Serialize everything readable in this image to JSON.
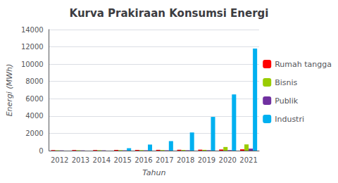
{
  "chart_data": {
    "type": "bar",
    "title": "Kurva Prakiraan Konsumsi Energi",
    "xlabel": "Tahun",
    "ylabel": "Energi (MWh)",
    "categories": [
      "2012",
      "2013",
      "2014",
      "2015",
      "2016",
      "2017",
      "2018",
      "2019",
      "2020",
      "2021"
    ],
    "series": [
      {
        "name": "Rumah tangga",
        "color": "#FF0000",
        "values": [
          60,
          70,
          70,
          80,
          80,
          90,
          100,
          110,
          130,
          150
        ]
      },
      {
        "name": "Bisnis",
        "color": "#99CC00",
        "values": [
          40,
          45,
          50,
          55,
          60,
          65,
          75,
          90,
          420,
          720
        ]
      },
      {
        "name": "Publik",
        "color": "#7030A0",
        "values": [
          30,
          30,
          35,
          35,
          40,
          40,
          45,
          50,
          55,
          230
        ]
      },
      {
        "name": "Industri",
        "color": "#00B0F0",
        "values": [
          0,
          0,
          0,
          280,
          700,
          1100,
          2100,
          3900,
          6500,
          11800
        ]
      }
    ],
    "ylim": [
      0,
      14000
    ],
    "yticks": [
      0,
      2000,
      4000,
      6000,
      8000,
      10000,
      12000,
      14000
    ],
    "grid": true,
    "legend": "right"
  }
}
